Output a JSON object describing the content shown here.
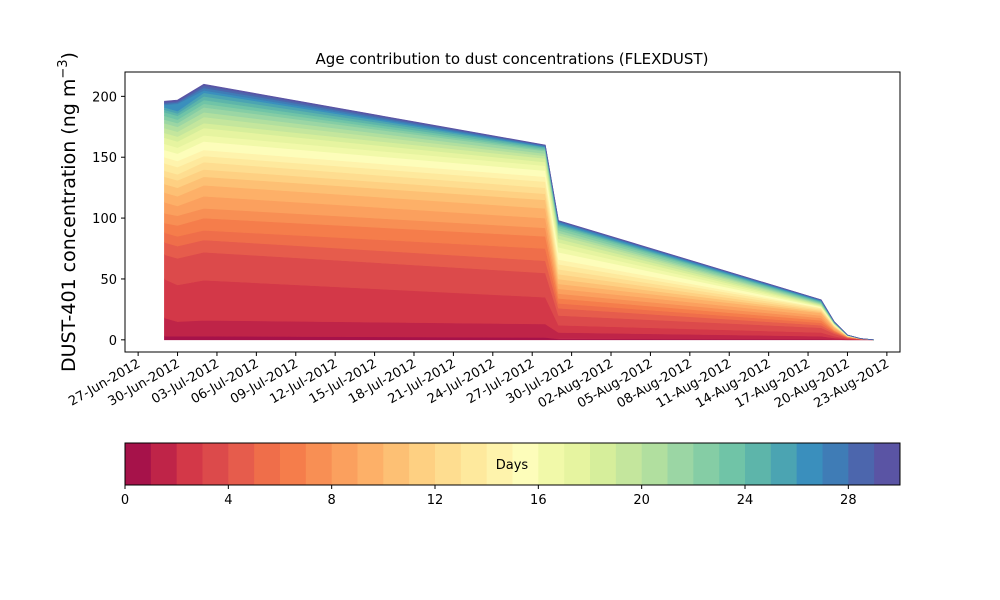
{
  "chart_data": {
    "type": "area",
    "title": "Age contribution to dust concentrations (FLEXDUST)",
    "ylabel": "DUST-401 concentration (ng m",
    "ylabel_superscript": "−3",
    "ylabel_close": ")",
    "xlabel": "",
    "x_ticks": [
      "27-Jun-2012",
      "30-Jun-2012",
      "03-Jul-2012",
      "06-Jul-2012",
      "09-Jul-2012",
      "12-Jul-2012",
      "15-Jul-2012",
      "18-Jul-2012",
      "21-Jul-2012",
      "24-Jul-2012",
      "27-Jul-2012",
      "30-Jul-2012",
      "02-Aug-2012",
      "05-Aug-2012",
      "08-Aug-2012",
      "11-Aug-2012",
      "14-Aug-2012",
      "17-Aug-2012",
      "20-Aug-2012",
      "23-Aug-2012"
    ],
    "y_ticks": [
      "0",
      "50",
      "100",
      "150",
      "200"
    ],
    "xlim": [
      "2012-06-26",
      "2012-08-24"
    ],
    "ylim": [
      -10,
      220
    ],
    "x": [
      "2012-06-29",
      "2012-06-30",
      "2012-07-02",
      "2012-07-28",
      "2012-07-29",
      "2012-08-18",
      "2012-08-19",
      "2012-08-20",
      "2012-08-21",
      "2012-08-22"
    ],
    "layer_days": [
      0,
      1,
      2,
      3,
      4,
      5,
      6,
      7,
      8,
      9,
      10,
      11,
      12,
      13,
      14,
      15,
      16,
      17,
      18,
      19,
      20,
      21,
      22,
      23,
      24,
      25,
      26,
      27,
      28,
      29
    ],
    "series_total": [
      196,
      197,
      210,
      160,
      98,
      33,
      15,
      4,
      1,
      0
    ],
    "cumulative_boundaries": [
      [
        0,
        0,
        0,
        0,
        0,
        0,
        0,
        0,
        0,
        0
      ],
      [
        3,
        3,
        3,
        2,
        0.8,
        0.5,
        0.2,
        0,
        0,
        0
      ],
      [
        18,
        15,
        16,
        13,
        6,
        3,
        1.5,
        0.5,
        0.2,
        0
      ],
      [
        50,
        45,
        49,
        35,
        12,
        6,
        3,
        1,
        0.4,
        0
      ],
      [
        70,
        67,
        72,
        55,
        20,
        10,
        5,
        1.5,
        0.5,
        0
      ],
      [
        80,
        77,
        82,
        65,
        26,
        12,
        6,
        1.8,
        0.6,
        0
      ],
      [
        88,
        85,
        90,
        75,
        30,
        14,
        7,
        2,
        0.7,
        0
      ],
      [
        96,
        94,
        100,
        85,
        34,
        16,
        7.5,
        2.2,
        0.8,
        0
      ],
      [
        104,
        102,
        108,
        92,
        38,
        18,
        8,
        2.4,
        0.8,
        0
      ],
      [
        113,
        110,
        118,
        100,
        42,
        20,
        9,
        2.6,
        0.9,
        0
      ],
      [
        121,
        118,
        127,
        108,
        46,
        22,
        10,
        2.8,
        1,
        0
      ],
      [
        128,
        125,
        134,
        115,
        50,
        23,
        10.5,
        3,
        1,
        0
      ],
      [
        134,
        131,
        140,
        120,
        54,
        24,
        11,
        3,
        1,
        0
      ],
      [
        139,
        136,
        146,
        125,
        58,
        25,
        11.5,
        3.1,
        1,
        0
      ],
      [
        145,
        142,
        151,
        130,
        62,
        26,
        12,
        3.2,
        1,
        0
      ],
      [
        150,
        147,
        156,
        134,
        66,
        26.5,
        12.2,
        3.3,
        1,
        0
      ],
      [
        156,
        153,
        163,
        139,
        72,
        27,
        12.5,
        3.4,
        1,
        0
      ],
      [
        161,
        158,
        168,
        143,
        76,
        27.5,
        12.8,
        3.4,
        1,
        0
      ],
      [
        166,
        163,
        174,
        146,
        80,
        28,
        13,
        3.5,
        1,
        0
      ],
      [
        170,
        167,
        178,
        149,
        83,
        28.5,
        13.2,
        3.5,
        1,
        0
      ],
      [
        174,
        171,
        183,
        151,
        86,
        29,
        13.4,
        3.6,
        1,
        0
      ],
      [
        178,
        175,
        187,
        153,
        88,
        29.5,
        13.6,
        3.6,
        1,
        0
      ],
      [
        181,
        178,
        191,
        155,
        90,
        30,
        13.8,
        3.7,
        1,
        0
      ],
      [
        184,
        181,
        194,
        156,
        92,
        30.5,
        14,
        3.7,
        1,
        0
      ],
      [
        187,
        184,
        197,
        157,
        93.5,
        31,
        14.2,
        3.8,
        1,
        0
      ],
      [
        189,
        186,
        200,
        158,
        94.5,
        31.5,
        14.4,
        3.8,
        1,
        0
      ],
      [
        191,
        188,
        203,
        158.5,
        95.5,
        32,
        14.6,
        3.9,
        1,
        0
      ],
      [
        193,
        194,
        205,
        159,
        96.5,
        32.3,
        14.7,
        3.9,
        1,
        0
      ],
      [
        194,
        195,
        207,
        159.5,
        97.2,
        32.6,
        14.8,
        4,
        1,
        0
      ],
      [
        195,
        196,
        209,
        159.8,
        97.7,
        32.8,
        14.9,
        4,
        1,
        0
      ],
      [
        196,
        197,
        210,
        160,
        98,
        33,
        15,
        4,
        1,
        0
      ]
    ],
    "colorbar": {
      "label": "Days",
      "ticks": [
        "0",
        "4",
        "8",
        "12",
        "16",
        "20",
        "24",
        "28"
      ],
      "range": [
        0,
        30
      ],
      "colors": [
        "#a6124a",
        "#bf2448",
        "#d33848",
        "#dc4a4b",
        "#e65c4c",
        "#ef6e4a",
        "#f57d4b",
        "#f88f54",
        "#fba05e",
        "#fdb068",
        "#fdc074",
        "#fed082",
        "#fedd90",
        "#fee99d",
        "#fef3ac",
        "#fdfdba",
        "#f1f9a9",
        "#e6f4a0",
        "#d6ee9b",
        "#c4e69d",
        "#b1df9f",
        "#9bd6a4",
        "#85cda5",
        "#70c4a7",
        "#5db5aa",
        "#4ba4b2",
        "#3a8fbd",
        "#3f7cb6",
        "#4c66ad",
        "#5a54a4"
      ]
    }
  }
}
